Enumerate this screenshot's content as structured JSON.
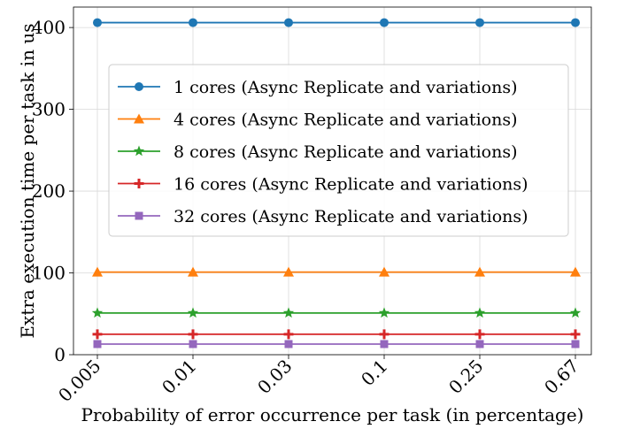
{
  "chart_data": {
    "type": "line",
    "categories": [
      "0.005",
      "0.01",
      "0.03",
      "0.1",
      "0.25",
      "0.67"
    ],
    "xlabel": "Probability of error occurrence per task (in percentage)",
    "ylabel": "Extra execution time per task in us",
    "ylim": [
      0,
      425
    ],
    "yticks": [
      0,
      100,
      200,
      300,
      400
    ],
    "grid": true,
    "legend_position": "center",
    "series": [
      {
        "name": "1 cores (Async Replicate and variations)",
        "values": [
          406,
          406,
          406,
          406,
          406,
          406
        ],
        "color": "#1f77b4",
        "marker": "circle"
      },
      {
        "name": "4 cores (Async Replicate and variations)",
        "values": [
          101,
          101,
          101,
          101,
          101,
          101
        ],
        "color": "#ff7f0e",
        "marker": "triangle"
      },
      {
        "name": "8 cores (Async Replicate and variations)",
        "values": [
          51,
          51,
          51,
          51,
          51,
          51
        ],
        "color": "#2ca02c",
        "marker": "star"
      },
      {
        "name": "16 cores (Async Replicate and variations)",
        "values": [
          25,
          25,
          25,
          25,
          25,
          25
        ],
        "color": "#d62728",
        "marker": "plus"
      },
      {
        "name": "32 cores (Async Replicate and variations)",
        "values": [
          13,
          13,
          13,
          13,
          13,
          13
        ],
        "color": "#9467bd",
        "marker": "square"
      }
    ]
  }
}
